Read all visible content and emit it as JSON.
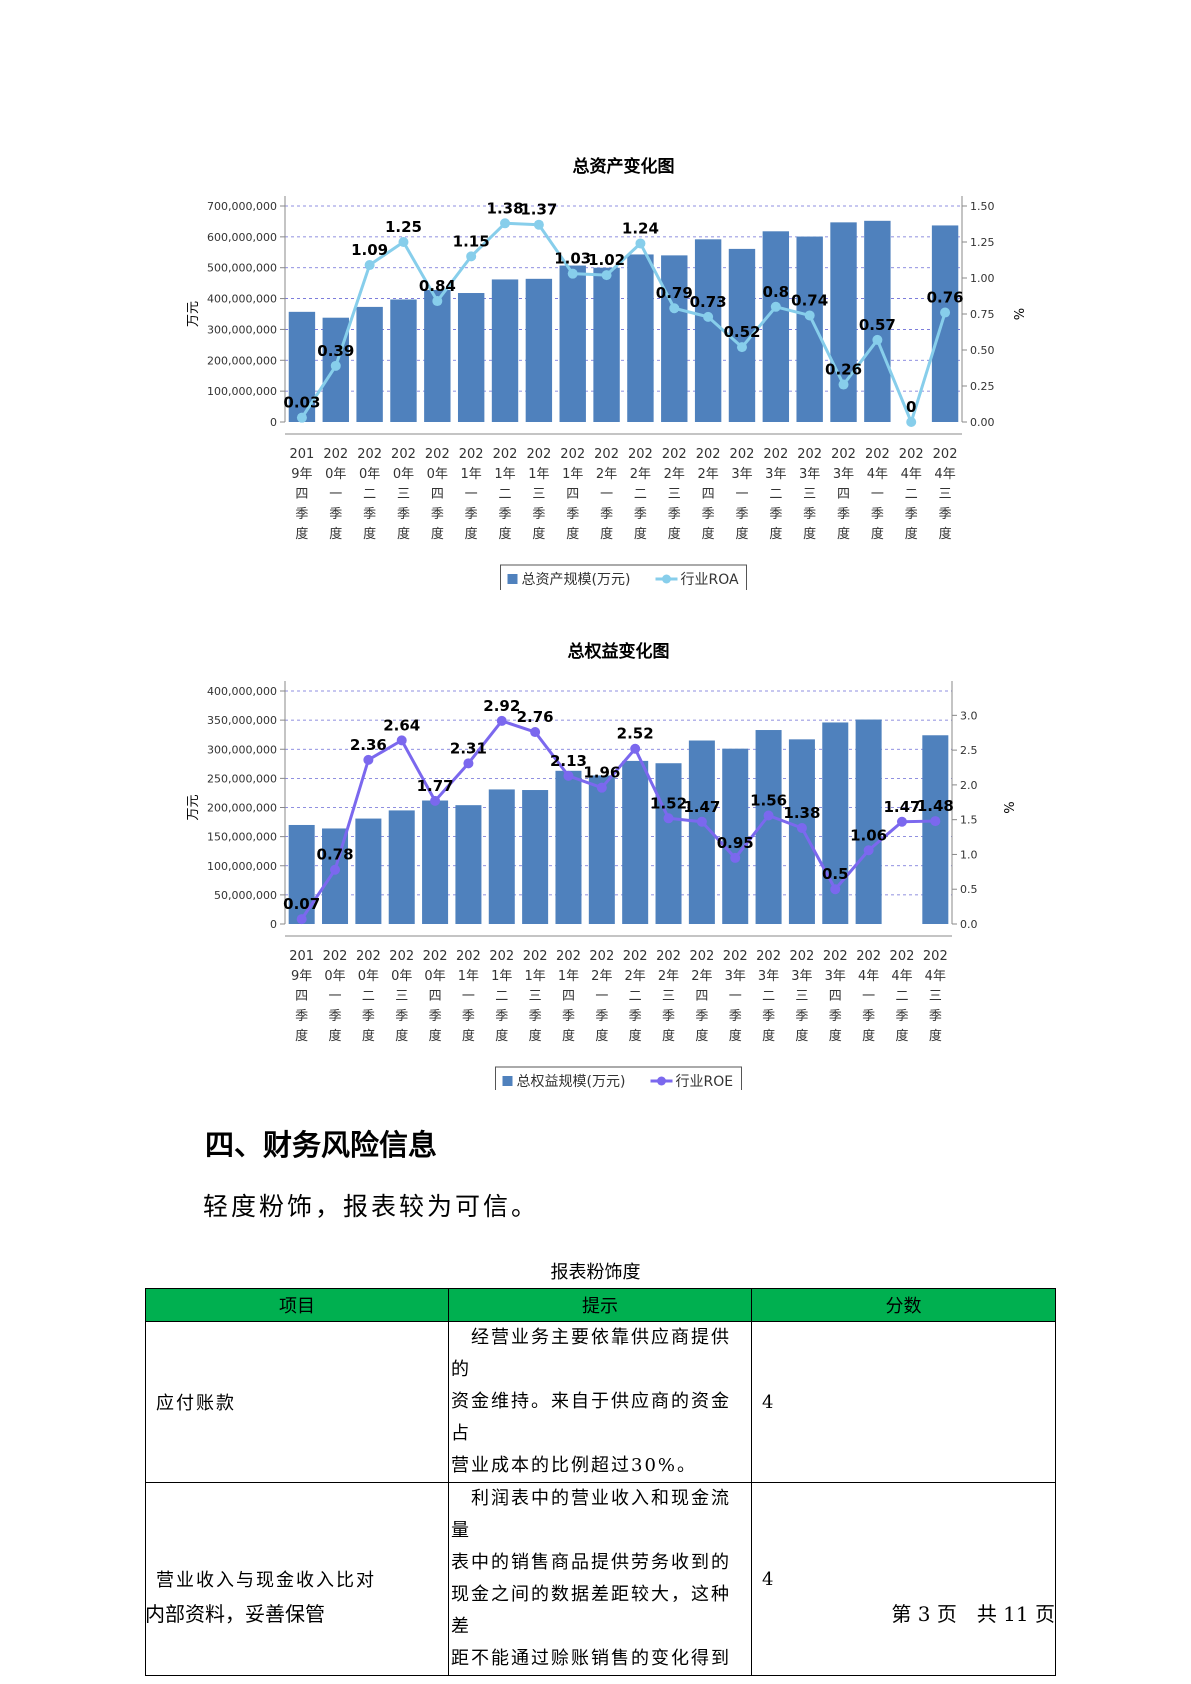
{
  "chart_data": [
    {
      "type": "bar",
      "title": "总资产变化图",
      "ylabel": "万元",
      "y2label": "%",
      "ylim": [
        0,
        700000000
      ],
      "y2lim": [
        0,
        1.5
      ],
      "yticks": [
        "0",
        "100,000,000",
        "200,000,000",
        "300,000,000",
        "400,000,000",
        "500,000,000",
        "600,000,000",
        "700,000,000"
      ],
      "y2ticks": [
        "0.00",
        "0.25",
        "0.50",
        "0.75",
        "1.00",
        "1.25",
        "1.50"
      ],
      "categories": [
        "2019年四季度",
        "2020年一季度",
        "2020年二季度",
        "2020年三季度",
        "2020年四季度",
        "2021年一季度",
        "2021年二季度",
        "2021年三季度",
        "2021年四季度",
        "2022年一季度",
        "2022年二季度",
        "2022年三季度",
        "2022年四季度",
        "2023年一季度",
        "2023年二季度",
        "2023年三季度",
        "2023年四季度",
        "2024年一季度",
        "2024年二季度",
        "2024年三季度"
      ],
      "category_labels": [
        [
          "201",
          "9年",
          "四",
          "季",
          "度"
        ],
        [
          "202",
          "0年",
          "一",
          "季",
          "度"
        ],
        [
          "202",
          "0年",
          "二",
          "季",
          "度"
        ],
        [
          "202",
          "0年",
          "三",
          "季",
          "度"
        ],
        [
          "202",
          "0年",
          "四",
          "季",
          "度"
        ],
        [
          "202",
          "1年",
          "一",
          "季",
          "度"
        ],
        [
          "202",
          "1年",
          "二",
          "季",
          "度"
        ],
        [
          "202",
          "1年",
          "三",
          "季",
          "度"
        ],
        [
          "202",
          "1年",
          "四",
          "季",
          "度"
        ],
        [
          "202",
          "2年",
          "一",
          "季",
          "度"
        ],
        [
          "202",
          "2年",
          "二",
          "季",
          "度"
        ],
        [
          "202",
          "2年",
          "三",
          "季",
          "度"
        ],
        [
          "202",
          "2年",
          "四",
          "季",
          "度"
        ],
        [
          "202",
          "3年",
          "一",
          "季",
          "度"
        ],
        [
          "202",
          "3年",
          "二",
          "季",
          "度"
        ],
        [
          "202",
          "3年",
          "三",
          "季",
          "度"
        ],
        [
          "202",
          "3年",
          "四",
          "季",
          "度"
        ],
        [
          "202",
          "4年",
          "一",
          "季",
          "度"
        ],
        [
          "202",
          "4年",
          "二",
          "季",
          "度"
        ],
        [
          "202",
          "4年",
          "三",
          "季",
          "度"
        ]
      ],
      "series": [
        {
          "name": "总资产规模(万元)",
          "kind": "bar",
          "axis": "left",
          "color": "#4f81bd",
          "values": [
            357000000,
            338000000,
            373000000,
            397000000,
            428000000,
            418000000,
            462000000,
            464000000,
            507000000,
            500000000,
            543000000,
            540000000,
            592000000,
            561000000,
            618000000,
            601000000,
            647000000,
            652000000,
            null,
            637000000
          ]
        },
        {
          "name": "行业ROA",
          "kind": "line",
          "axis": "right",
          "color": "#87ceeb",
          "values": [
            0.03,
            0.39,
            1.09,
            1.25,
            0.84,
            1.15,
            1.38,
            1.37,
            1.03,
            1.02,
            1.24,
            0.79,
            0.73,
            0.52,
            0.8,
            0.74,
            0.26,
            0.57,
            0,
            0.76
          ],
          "labels": [
            "0.03",
            "0.39",
            "1.09",
            "1.25",
            "0.84",
            "1.15",
            "1.38",
            "1.37",
            "1.03",
            "1.02",
            "1.24",
            "0.79",
            "0.73",
            "0.52",
            "0.8",
            "0.74",
            "0.26",
            "0.57",
            "0",
            "0.76"
          ]
        }
      ],
      "grid": true,
      "legend": "bottom"
    },
    {
      "type": "bar",
      "title": "总权益变化图",
      "ylabel": "万元",
      "y2label": "%",
      "ylim": [
        0,
        400000000
      ],
      "y2lim": [
        0,
        3.35
      ],
      "yticks": [
        "0",
        "50,000,000",
        "100,000,000",
        "150,000,000",
        "200,000,000",
        "250,000,000",
        "300,000,000",
        "350,000,000",
        "400,000,000"
      ],
      "y2ticks": [
        "0.0",
        "0.5",
        "1.0",
        "1.5",
        "2.0",
        "2.5",
        "3.0"
      ],
      "categories": [
        "2019年四季度",
        "2020年一季度",
        "2020年二季度",
        "2020年三季度",
        "2020年四季度",
        "2021年一季度",
        "2021年二季度",
        "2021年三季度",
        "2021年四季度",
        "2022年一季度",
        "2022年二季度",
        "2022年三季度",
        "2022年四季度",
        "2023年一季度",
        "2023年二季度",
        "2023年三季度",
        "2023年四季度",
        "2024年一季度",
        "2024年二季度",
        "2024年三季度"
      ],
      "category_labels": [
        [
          "201",
          "9年",
          "四",
          "季",
          "度"
        ],
        [
          "202",
          "0年",
          "一",
          "季",
          "度"
        ],
        [
          "202",
          "0年",
          "二",
          "季",
          "度"
        ],
        [
          "202",
          "0年",
          "三",
          "季",
          "度"
        ],
        [
          "202",
          "0年",
          "四",
          "季",
          "度"
        ],
        [
          "202",
          "1年",
          "一",
          "季",
          "度"
        ],
        [
          "202",
          "1年",
          "二",
          "季",
          "度"
        ],
        [
          "202",
          "1年",
          "三",
          "季",
          "度"
        ],
        [
          "202",
          "1年",
          "四",
          "季",
          "度"
        ],
        [
          "202",
          "2年",
          "一",
          "季",
          "度"
        ],
        [
          "202",
          "2年",
          "二",
          "季",
          "度"
        ],
        [
          "202",
          "2年",
          "三",
          "季",
          "度"
        ],
        [
          "202",
          "2年",
          "四",
          "季",
          "度"
        ],
        [
          "202",
          "3年",
          "一",
          "季",
          "度"
        ],
        [
          "202",
          "3年",
          "二",
          "季",
          "度"
        ],
        [
          "202",
          "3年",
          "三",
          "季",
          "度"
        ],
        [
          "202",
          "3年",
          "四",
          "季",
          "度"
        ],
        [
          "202",
          "4年",
          "一",
          "季",
          "度"
        ],
        [
          "202",
          "4年",
          "二",
          "季",
          "度"
        ],
        [
          "202",
          "4年",
          "三",
          "季",
          "度"
        ]
      ],
      "series": [
        {
          "name": "总权益规模(万元)",
          "kind": "bar",
          "axis": "left",
          "color": "#4f81bd",
          "values": [
            170000000,
            164000000,
            181000000,
            195000000,
            212000000,
            204000000,
            231000000,
            230000000,
            263000000,
            255000000,
            280000000,
            276000000,
            315000000,
            301000000,
            333000000,
            317000000,
            346000000,
            351000000,
            null,
            324000000
          ]
        },
        {
          "name": "行业ROE",
          "kind": "line",
          "axis": "right",
          "color": "#7b68ee",
          "values": [
            0.07,
            0.78,
            2.36,
            2.64,
            1.77,
            2.31,
            2.92,
            2.76,
            2.13,
            1.96,
            2.52,
            1.52,
            1.47,
            0.95,
            1.56,
            1.38,
            0.5,
            1.06,
            1.47,
            1.48
          ],
          "labels": [
            "0.07",
            "0.78",
            "2.36",
            "2.64",
            "1.77",
            "2.31",
            "2.92",
            "2.76",
            "2.13",
            "1.96",
            "2.52",
            "1.52",
            "1.47",
            "0.95",
            "1.56",
            "1.38",
            "0.5",
            "1.06",
            "1.47",
            "1.48"
          ]
        }
      ],
      "grid": true,
      "legend": "bottom"
    }
  ],
  "section": {
    "heading": "四、财务风险信息",
    "conclusion": "轻度粉饰，报表较为可信。"
  },
  "table": {
    "caption": "报表粉饰度",
    "headers": [
      "项目",
      "提示",
      "分数"
    ],
    "header_color": "#00b050",
    "rows": [
      {
        "item": "应付账款",
        "hint_lines": [
          "　经营业务主要依靠供应商提供的",
          "资金维持。来自于供应商的资金占",
          "营业成本的比例超过30%。"
        ],
        "score": "4"
      },
      {
        "item": "营业收入与现金收入比对",
        "hint_lines": [
          "　利润表中的营业收入和现金流量",
          "表中的销售商品提供劳务收到的",
          "现金之间的数据差距较大，这种差",
          "距不能通过赊账销售的变化得到"
        ],
        "score": "4"
      }
    ]
  },
  "footer": {
    "left": "内部资料，妥善保管",
    "right": "第 3 页　共 11 页"
  }
}
